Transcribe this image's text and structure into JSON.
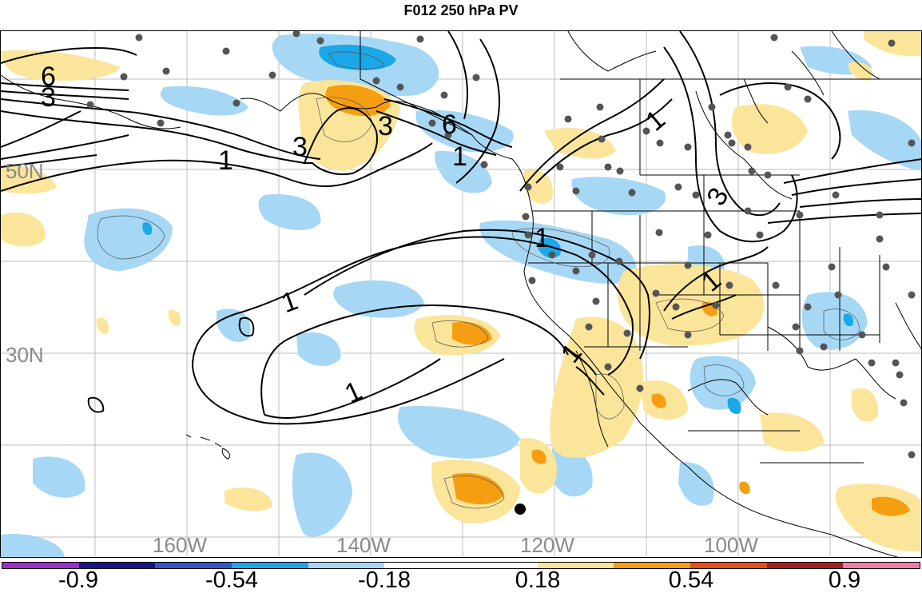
{
  "title": "F012 250 hPa PV",
  "lat_labels": [
    "50N",
    "30N"
  ],
  "lon_labels": [
    "160W",
    "140W",
    "120W",
    "100W"
  ],
  "contour_labels": [
    "6",
    "3",
    "3",
    "3",
    "6",
    "1",
    "1",
    "1",
    "1",
    "1",
    "3",
    "1",
    "1",
    "1",
    "1"
  ],
  "colorbar": {
    "colors": [
      "#9b30c9",
      "#14148c",
      "#3255c8",
      "#1aa8e8",
      "#a6d8f5",
      "#ffffff",
      "#ffffff",
      "#fbe59a",
      "#f59e12",
      "#e84d12",
      "#a81c1c",
      "#f07aa8"
    ],
    "ticks": [
      "-0.9",
      "-0.54",
      "-0.18",
      "0.18",
      "0.54",
      "0.9"
    ]
  },
  "colors": {
    "light_blue": "#a6d8f5",
    "mid_blue": "#1aa8e8",
    "light_yellow": "#fbe59a",
    "orange": "#f59e12",
    "gridline": "#bdbdbd",
    "station_dot": "#555555"
  }
}
